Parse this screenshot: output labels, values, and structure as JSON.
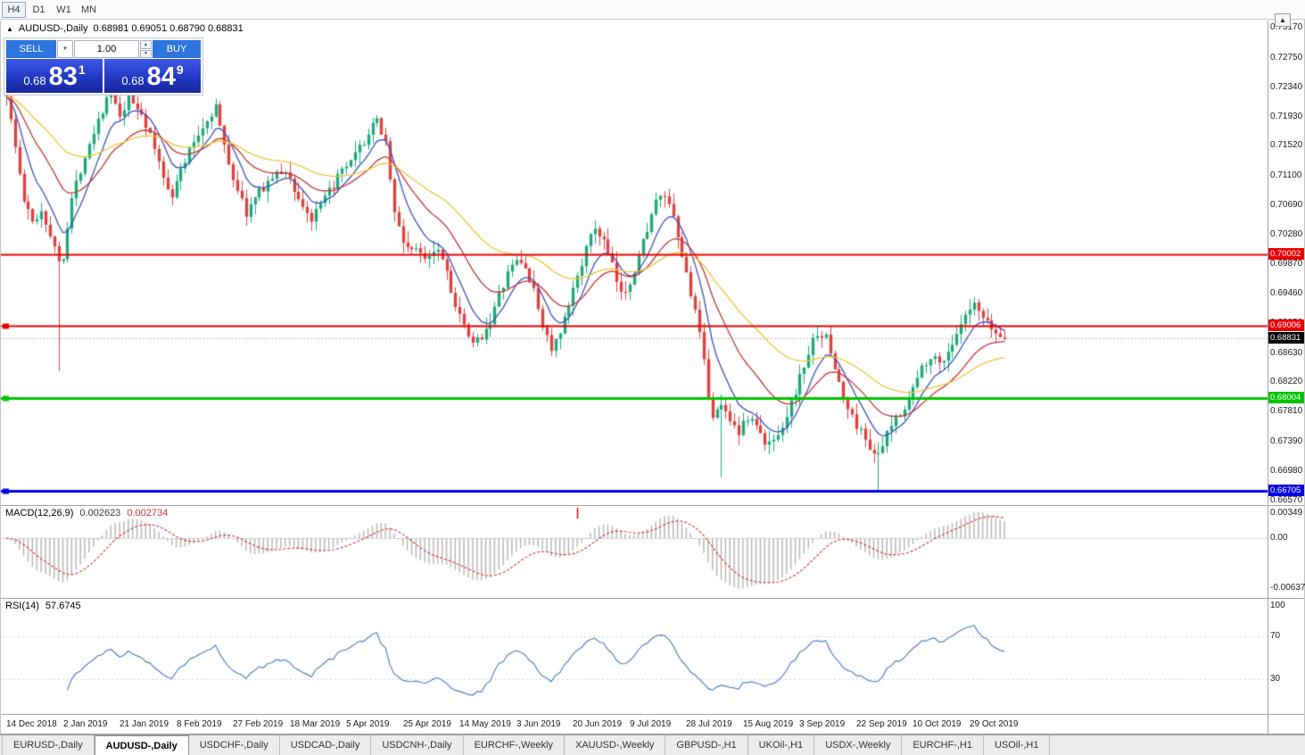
{
  "toolbar": {
    "timeframes": [
      {
        "label": "H4",
        "active": true
      },
      {
        "label": "D1",
        "active": false
      },
      {
        "label": "W1",
        "active": false
      },
      {
        "label": "MN",
        "active": false
      }
    ]
  },
  "icons": {
    "collapse": "▲",
    "dropdown": "▼",
    "spin_up": "▲",
    "spin_down": "▼",
    "scroll_top": "▲"
  },
  "chart": {
    "title": "AUDUSD-,Daily",
    "ohlc": "0.68981 0.69051 0.68790 0.68831"
  },
  "trade_panel": {
    "sell_label": "SELL",
    "buy_label": "BUY",
    "volume": "1.00",
    "sell_price": {
      "prefix": "0.68",
      "big": "83",
      "sup": "1"
    },
    "buy_price": {
      "prefix": "0.68",
      "big": "84",
      "sup": "9"
    }
  },
  "price_axis": {
    "labels": [
      "0.73170",
      "0.72750",
      "0.72340",
      "0.71930",
      "0.71520",
      "0.71100",
      "0.70690",
      "0.70280",
      "0.69870",
      "0.69460",
      "0.69050",
      "0.68630",
      "0.68220",
      "0.67810",
      "0.67390",
      "0.66980",
      "0.66570"
    ]
  },
  "hlines": [
    {
      "value": 0.70002,
      "label": "0.70002",
      "color": "#e60000",
      "width": 2,
      "handle": false
    },
    {
      "value": 0.69006,
      "label": "0.69006",
      "color": "#e60000",
      "width": 2,
      "handle": true
    },
    {
      "value": 0.68004,
      "label": "0.68004",
      "color": "#00c400",
      "width": 3,
      "handle": true
    },
    {
      "value": 0.66705,
      "label": "0.66705",
      "color": "#0000e6",
      "width": 3,
      "handle": true
    }
  ],
  "current_price": {
    "value": 0.68831,
    "label": "0.68831",
    "color": "#000000"
  },
  "macd": {
    "label": "MACD(12,26,9)",
    "value_main": "0.002623",
    "value_signal": "0.002734",
    "axis": [
      "0.00349",
      "0.00",
      "-0.00637"
    ]
  },
  "rsi": {
    "label": "RSI(14)",
    "value": "57.6745",
    "axis": [
      "100",
      "70",
      "30"
    ]
  },
  "dates": [
    "14 Dec 2018",
    "2 Jan 2019",
    "21 Jan 2019",
    "8 Feb 2019",
    "27 Feb 2019",
    "18 Mar 2019",
    "5 Apr 2019",
    "25 Apr 2019",
    "14 May 2019",
    "3 Jun 2019",
    "20 Jun 2019",
    "9 Jul 2019",
    "28 Jul 2019",
    "15 Aug 2019",
    "3 Sep 2019",
    "22 Sep 2019",
    "10 Oct 2019",
    "29 Oct 2019"
  ],
  "tabs": [
    {
      "label": "EURUSD-,Daily",
      "active": false
    },
    {
      "label": "AUDUSD-,Daily",
      "active": true
    },
    {
      "label": "USDCHF-,Daily",
      "active": false
    },
    {
      "label": "USDCAD-,Daily",
      "active": false
    },
    {
      "label": "USDCNH-,Daily",
      "active": false
    },
    {
      "label": "EURCHF-,Weekly",
      "active": false
    },
    {
      "label": "XAUUSD-,Weekly",
      "active": false
    },
    {
      "label": "GBPUSD-,H1",
      "active": false
    },
    {
      "label": "UKOil-,H1",
      "active": false
    },
    {
      "label": "USDX-,Weekly",
      "active": false
    },
    {
      "label": "EURCHF-,H1",
      "active": false
    },
    {
      "label": "USOil-,H1",
      "active": false
    }
  ],
  "chart_data": {
    "type": "candlestick",
    "symbol": "AUDUSD",
    "period": "Daily",
    "candle_count": 230,
    "y_range": [
      0.6651,
      0.7324
    ],
    "bull_color": "#1ea97c",
    "bear_color": "#e14040",
    "price_anchors": [
      [
        0,
        0.7225
      ],
      [
        2,
        0.715
      ],
      [
        4,
        0.7075
      ],
      [
        6,
        0.7045
      ],
      [
        8,
        0.7062
      ],
      [
        10,
        0.703
      ],
      [
        11,
        0.7008
      ],
      [
        12,
        0.6992
      ],
      [
        13,
        0.7
      ],
      [
        15,
        0.7078
      ],
      [
        18,
        0.714
      ],
      [
        21,
        0.719
      ],
      [
        24,
        0.7228
      ],
      [
        26,
        0.7188
      ],
      [
        28,
        0.7218
      ],
      [
        31,
        0.7198
      ],
      [
        34,
        0.7148
      ],
      [
        36,
        0.7108
      ],
      [
        38,
        0.7085
      ],
      [
        40,
        0.7118
      ],
      [
        43,
        0.7158
      ],
      [
        46,
        0.7188
      ],
      [
        48,
        0.7208
      ],
      [
        50,
        0.715
      ],
      [
        52,
        0.7108
      ],
      [
        55,
        0.7058
      ],
      [
        58,
        0.7088
      ],
      [
        61,
        0.7108
      ],
      [
        64,
        0.7118
      ],
      [
        67,
        0.7078
      ],
      [
        70,
        0.7048
      ],
      [
        73,
        0.7078
      ],
      [
        76,
        0.7108
      ],
      [
        79,
        0.7128
      ],
      [
        82,
        0.7158
      ],
      [
        85,
        0.7188
      ],
      [
        87,
        0.7158
      ],
      [
        89,
        0.7058
      ],
      [
        91,
        0.7018
      ],
      [
        93,
        0.7008
      ],
      [
        96,
        0.6998
      ],
      [
        99,
        0.7012
      ],
      [
        101,
        0.6978
      ],
      [
        103,
        0.6928
      ],
      [
        105,
        0.6898
      ],
      [
        107,
        0.6873
      ],
      [
        109,
        0.6888
      ],
      [
        111,
        0.6908
      ],
      [
        113,
        0.6943
      ],
      [
        115,
        0.6973
      ],
      [
        117,
        0.6993
      ],
      [
        119,
        0.6983
      ],
      [
        121,
        0.6948
      ],
      [
        123,
        0.6903
      ],
      [
        125,
        0.6868
      ],
      [
        127,
        0.6888
      ],
      [
        129,
        0.6928
      ],
      [
        131,
        0.6973
      ],
      [
        133,
        0.7008
      ],
      [
        135,
        0.7038
      ],
      [
        137,
        0.7018
      ],
      [
        139,
        0.6983
      ],
      [
        141,
        0.6943
      ],
      [
        143,
        0.6963
      ],
      [
        145,
        0.6998
      ],
      [
        147,
        0.7038
      ],
      [
        149,
        0.7073
      ],
      [
        151,
        0.7083
      ],
      [
        153,
        0.7048
      ],
      [
        155,
        0.6998
      ],
      [
        157,
        0.6948
      ],
      [
        159,
        0.6888
      ],
      [
        160,
        0.6848
      ],
      [
        161,
        0.6803
      ],
      [
        162,
        0.6778
      ],
      [
        164,
        0.6788
      ],
      [
        166,
        0.6773
      ],
      [
        168,
        0.6753
      ],
      [
        170,
        0.6773
      ],
      [
        172,
        0.6763
      ],
      [
        174,
        0.6733
      ],
      [
        176,
        0.6743
      ],
      [
        178,
        0.6763
      ],
      [
        180,
        0.6793
      ],
      [
        182,
        0.6828
      ],
      [
        184,
        0.6863
      ],
      [
        186,
        0.6893
      ],
      [
        188,
        0.6883
      ],
      [
        190,
        0.6843
      ],
      [
        192,
        0.6798
      ],
      [
        194,
        0.6773
      ],
      [
        196,
        0.6753
      ],
      [
        198,
        0.6733
      ],
      [
        200,
        0.6718
      ],
      [
        202,
        0.6748
      ],
      [
        204,
        0.6773
      ],
      [
        206,
        0.6788
      ],
      [
        208,
        0.6813
      ],
      [
        210,
        0.6843
      ],
      [
        212,
        0.686
      ],
      [
        214,
        0.6848
      ],
      [
        216,
        0.6866
      ],
      [
        218,
        0.6886
      ],
      [
        220,
        0.6913
      ],
      [
        222,
        0.6928
      ],
      [
        224,
        0.691
      ],
      [
        226,
        0.6896
      ],
      [
        228,
        0.6885
      ],
      [
        229,
        0.68831
      ]
    ],
    "wick_specials": [
      {
        "i": 12,
        "low": 0.6838
      },
      {
        "i": 164,
        "low": 0.669
      },
      {
        "i": 200,
        "low": 0.6671
      }
    ],
    "moving_averages": [
      {
        "period": 8,
        "color": "#3a50c0"
      },
      {
        "period": 20,
        "color": "#c23535"
      },
      {
        "period": 45,
        "color": "#eec437"
      }
    ],
    "indicators": {
      "macd": {
        "fast": 12,
        "slow": 26,
        "signal": 9
      },
      "rsi": {
        "period": 14
      }
    },
    "macd_marker_index": 131
  }
}
